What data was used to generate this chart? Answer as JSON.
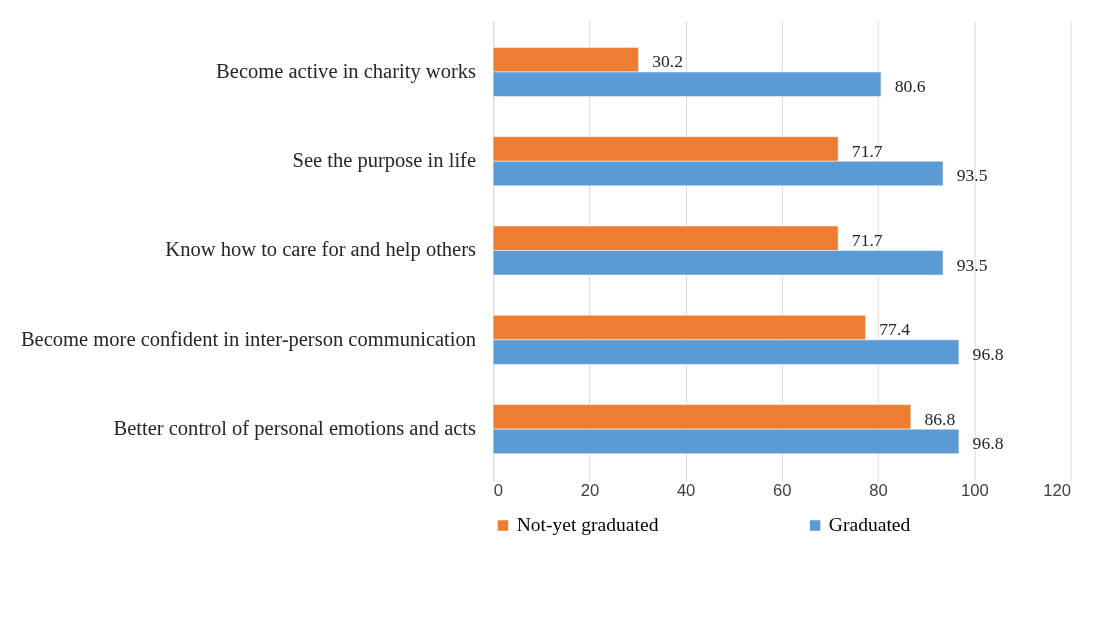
{
  "chart_data": {
    "type": "bar",
    "orientation": "horizontal",
    "categories": [
      "Become active in charity works",
      "See the purpose in life",
      "Know how to care for and help others",
      "Become more confident in inter-person communication",
      "Better control of personal emotions and acts"
    ],
    "series": [
      {
        "name": "Not-yet graduated",
        "color": "#ed7d31",
        "values": [
          30.2,
          71.7,
          71.7,
          77.4,
          86.8
        ]
      },
      {
        "name": "Graduated",
        "color": "#5b9bd5",
        "values": [
          80.6,
          93.5,
          93.5,
          96.8,
          96.8
        ]
      }
    ],
    "xlim": [
      0,
      120
    ],
    "xticks": [
      0,
      20,
      40,
      60,
      80,
      100,
      120
    ],
    "grid": "x",
    "legend": "bottom",
    "data_labels": true
  }
}
